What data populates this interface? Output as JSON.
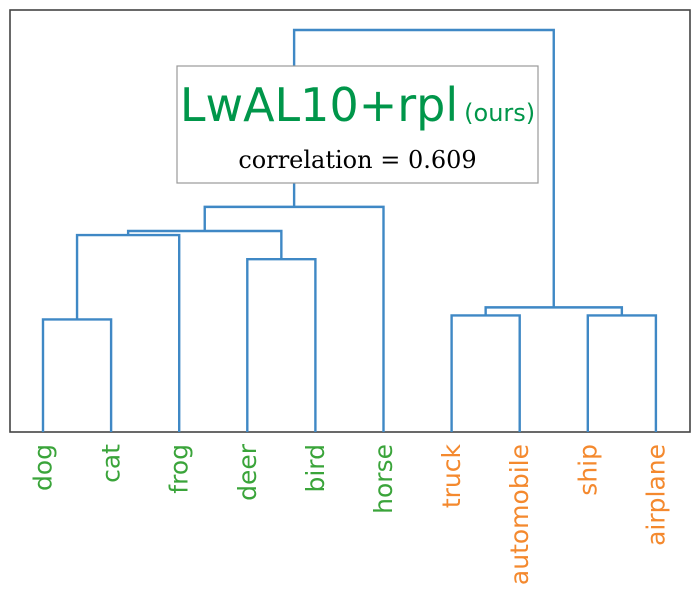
{
  "colors": {
    "link": "#3f88c5",
    "cluster_a_label": "#3aa43a",
    "cluster_b_label": "#f4892e",
    "title": "#00964a",
    "frame": "#444444",
    "box_border": "#999999"
  },
  "title_box": {
    "main": "LwAL10+rpl",
    "suffix": "(ours)",
    "correlation_text": "correlation = 0.609"
  },
  "chart_data": {
    "type": "dendrogram",
    "title": "LwAL10+rpl (ours)",
    "annotation": "correlation = 0.609",
    "leaves": [
      "dog",
      "cat",
      "frog",
      "deer",
      "bird",
      "horse",
      "truck",
      "automobile",
      "ship",
      "airplane"
    ],
    "leaf_groups": [
      "a",
      "a",
      "a",
      "a",
      "a",
      "a",
      "b",
      "b",
      "b",
      "b"
    ],
    "height_range": [
      0,
      1
    ],
    "merges": [
      {
        "left": "dog",
        "right": "cat",
        "height": 0.28
      },
      {
        "left": "deer",
        "right": "bird",
        "height": 0.43
      },
      {
        "left": "truck",
        "right": "automobile",
        "height": 0.29
      },
      {
        "left": "ship",
        "right": "airplane",
        "height": 0.29
      },
      {
        "left": "dog+cat",
        "right": "frog",
        "height": 0.49
      },
      {
        "left": "dog+cat+frog",
        "right": "deer+bird",
        "height": 0.5
      },
      {
        "left": "dog+cat+frog+deer+bird",
        "right": "horse",
        "height": 0.56
      },
      {
        "left": "truck+automobile",
        "right": "ship+airplane",
        "height": 0.31
      },
      {
        "left": "dog+cat+frog+deer+bird+horse",
        "right": "truck+automobile+ship+airplane",
        "height": 1.0
      }
    ],
    "grid": false,
    "legend": "none"
  }
}
